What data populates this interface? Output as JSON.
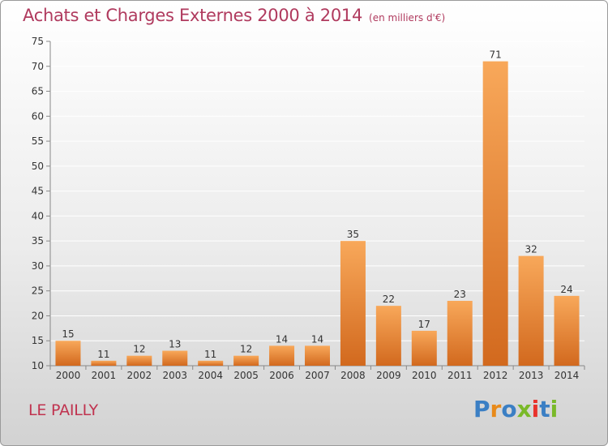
{
  "title": "Achats et Charges Externes 2000 à 2014",
  "unit": "(en milliers d'€)",
  "footer": {
    "commune": "LE PAILLY"
  },
  "logo": {
    "text": "Proxiti",
    "colors": [
      "#3b7fc4",
      "#e88a1a",
      "#3b7fc4",
      "#7ab929",
      "#e8322c",
      "#3b7fc4",
      "#7ab929"
    ]
  },
  "colors": {
    "bar_top": "#f8a85a",
    "bar_bottom": "#d2691e",
    "title": "#b03a5e",
    "footer": "#c0334f",
    "grid": "#ffffff"
  },
  "chart_data": {
    "type": "bar",
    "title": "Achats et Charges Externes 2000 à 2014",
    "subtitle": "(en milliers d'€)",
    "categories": [
      "2000",
      "2001",
      "2002",
      "2003",
      "2004",
      "2005",
      "2006",
      "2007",
      "2008",
      "2009",
      "2010",
      "2011",
      "2012",
      "2013",
      "2014"
    ],
    "values": [
      15,
      11,
      12,
      13,
      11,
      12,
      14,
      14,
      35,
      22,
      17,
      23,
      71,
      32,
      24
    ],
    "ylim": [
      10,
      75
    ],
    "yticks": [
      10,
      15,
      20,
      25,
      30,
      35,
      40,
      45,
      50,
      55,
      60,
      65,
      70,
      75
    ],
    "grid": "horizontal",
    "data_labels": true
  }
}
